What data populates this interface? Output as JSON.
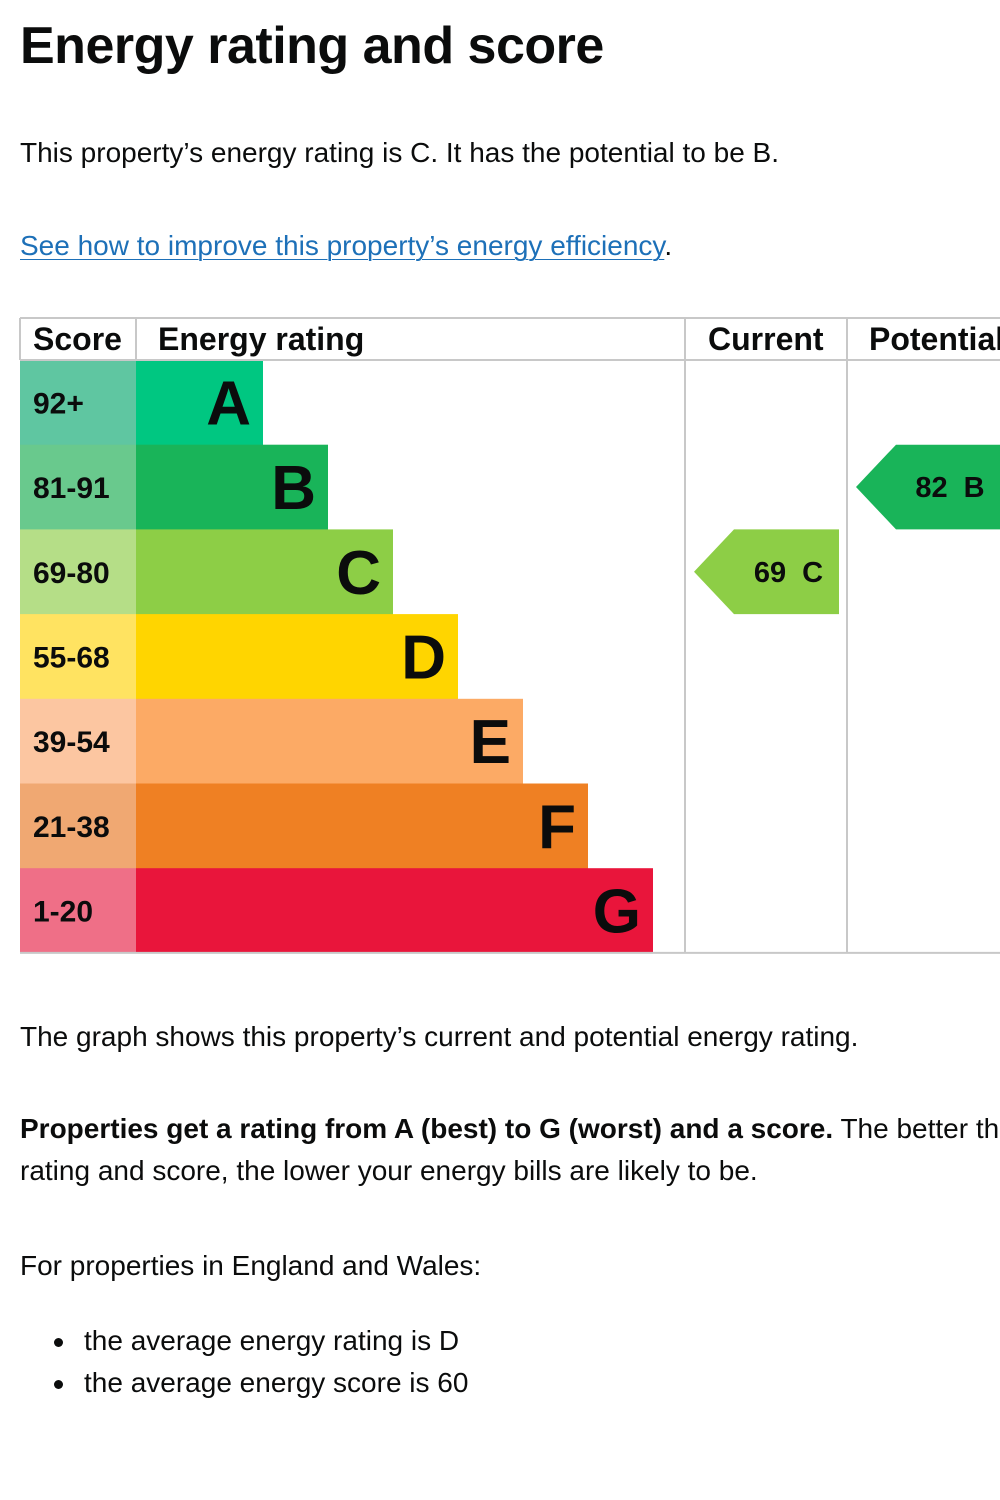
{
  "page": {
    "title": "Energy rating and score",
    "intro": "This property’s energy rating is C. It has the potential to be B.",
    "improve_link": "See how to improve this property’s energy efficiency",
    "improve_link_suffix": ".",
    "graph_caption": "The graph shows this property’s current and potential energy rating.",
    "explain_bold": "Properties get a rating from A (best) to G (worst) and a score.",
    "explain_rest": " The better the rating and score, the lower your energy bills are likely to be.",
    "context": "For properties in England and Wales:",
    "averages": [
      "the average energy rating is D",
      "the average energy score is 60"
    ]
  },
  "chart_data": {
    "type": "table",
    "headers": {
      "score": "Score",
      "rating": "Energy rating",
      "current": "Current",
      "potential": "Potential"
    },
    "bands": [
      {
        "letter": "A",
        "score_range": "92+",
        "color": "#00c781",
        "score_color": "#5fc6a1"
      },
      {
        "letter": "B",
        "score_range": "81-91",
        "color": "#19b459",
        "score_color": "#69c98d"
      },
      {
        "letter": "C",
        "score_range": "69-80",
        "color": "#8dce46",
        "score_color": "#b5de87"
      },
      {
        "letter": "D",
        "score_range": "55-68",
        "color": "#ffd500",
        "score_color": "#ffe361"
      },
      {
        "letter": "E",
        "score_range": "39-54",
        "color": "#fcaa65",
        "score_color": "#fcc6a1"
      },
      {
        "letter": "F",
        "score_range": "21-38",
        "color": "#ef8023",
        "score_color": "#f0a872"
      },
      {
        "letter": "G",
        "score_range": "1-20",
        "color": "#e9153b",
        "score_color": "#ef6f87"
      }
    ],
    "current": {
      "score": 69,
      "band": "C",
      "label": "69 C"
    },
    "potential": {
      "score": 82,
      "band": "B",
      "label": "82 B"
    }
  }
}
